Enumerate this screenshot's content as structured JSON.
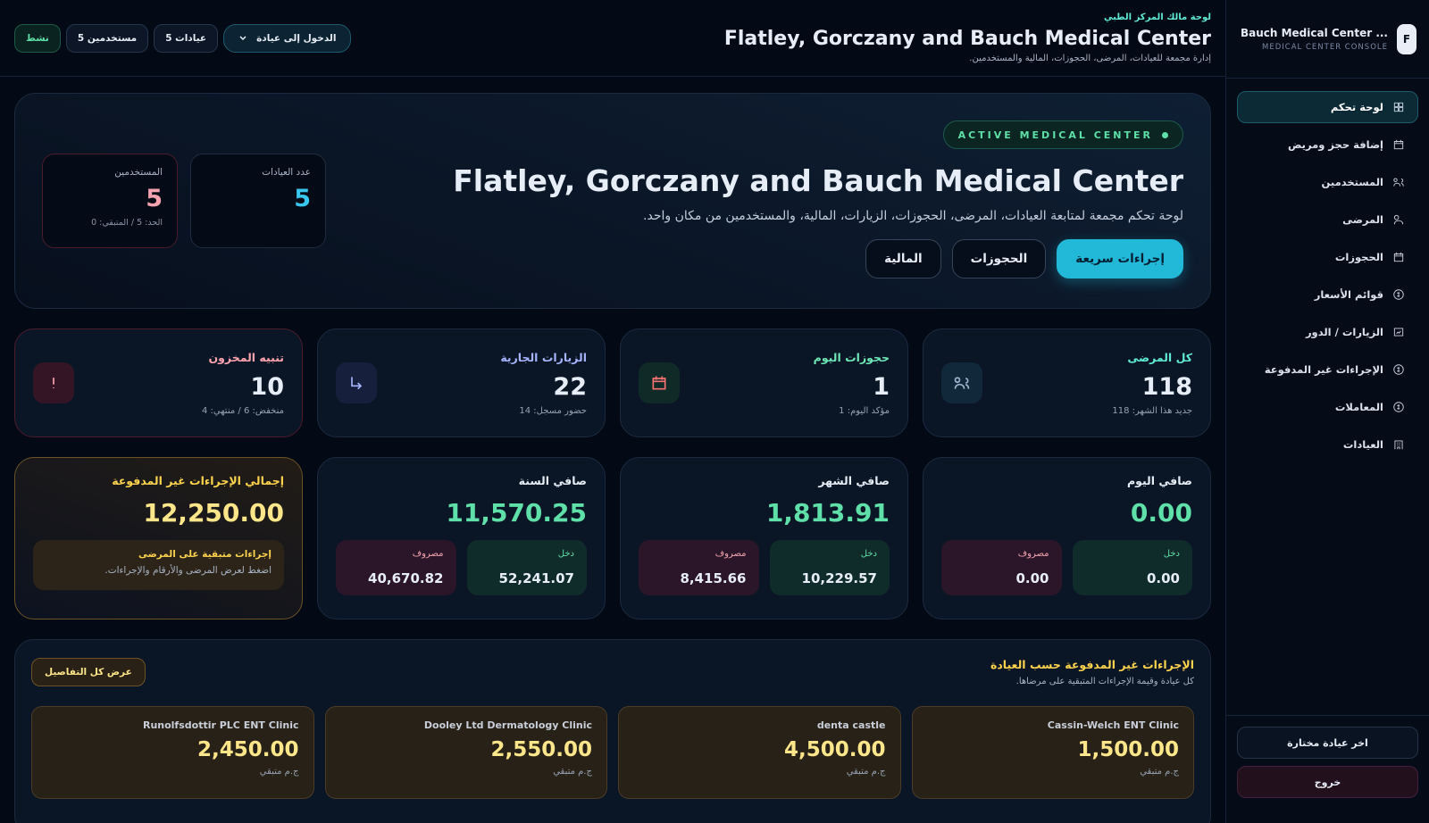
{
  "sidebar": {
    "avatar": "F",
    "brand_title": "Bauch Medical Center ...",
    "brand_subtitle": "MEDICAL CENTER CONSOLE",
    "nav": [
      "لوحة تحكم",
      "إضافة حجز ومريض",
      "المستخدمين",
      "المرضى",
      "الحجوزات",
      "قوائم الأسعار",
      "الزيارات / الدور",
      "الإجراءات غير المدفوعة",
      "المعاملات",
      "العيادات"
    ],
    "footer": [
      "اخر عيادة مختارة",
      "خروج"
    ]
  },
  "header": {
    "kicker": "لوحة مالك المركز الطبي",
    "title": "Flatley, Gorczany and Bauch Medical Center",
    "subtitle": "إدارة مجمعة للعيادات، المرضى، الحجوزات، المالية والمستخدمين.",
    "dropdown": "الدخول إلى عيادة",
    "chips": [
      "عيادات 5",
      "مستخدمين 5",
      "نشط"
    ]
  },
  "hero": {
    "badge": "ACTIVE MEDICAL CENTER",
    "title": "Flatley, Gorczany and Bauch Medical Center",
    "description": "لوحة تحكم مجمعة لمتابعة العيادات، المرضى، الحجوزات، الزيارات، المالية، والمستخدمين من مكان واحد.",
    "buttons": [
      "إجراءات سريعة",
      "الحجوزات",
      "المالية"
    ],
    "stats": [
      {
        "label": "عدد العيادات",
        "value": "5"
      },
      {
        "label": "المستخدمين",
        "value": "5",
        "note": "الحد: 5 / المتبقي: 0"
      }
    ]
  },
  "stat_cards": [
    {
      "title": "كل المرضى",
      "value": "118",
      "note": "جديد هذا الشهر: 118"
    },
    {
      "title": "حجوزات اليوم",
      "value": "1",
      "note": "مؤكد اليوم: 1"
    },
    {
      "title": "الزيارات الجارية",
      "value": "22",
      "note": "حضور مسجل: 14"
    },
    {
      "title": "تنبيه المخزون",
      "value": "10",
      "note": "منخفض: 6 / منتهي: 4"
    }
  ],
  "finance_cards": [
    {
      "title": "صافي اليوم",
      "value": "0.00",
      "income_label": "دخل",
      "income": "0.00",
      "expense_label": "مصروف",
      "expense": "0.00"
    },
    {
      "title": "صافي الشهر",
      "value": "1,813.91",
      "income_label": "دخل",
      "income": "10,229.57",
      "expense_label": "مصروف",
      "expense": "8,415.66"
    },
    {
      "title": "صافي السنة",
      "value": "11,570.25",
      "income_label": "دخل",
      "income": "52,241.07",
      "expense_label": "مصروف",
      "expense": "40,670.82"
    }
  ],
  "unpaid_total": {
    "title": "إجمالي الإجراءات غير المدفوعة",
    "value": "12,250.00",
    "box_title": "إجراءات متبقية على المرضى",
    "box_text": "اضغط لعرض المرضى والأرقام والإجراءات."
  },
  "clinics_section": {
    "title": "الإجراءات غير المدفوعة حسب العيادة",
    "subtitle": "كل عيادة وقيمة الإجراءات المتبقية على مرضاها.",
    "button": "عرض كل التفاصيل",
    "clinics": [
      {
        "name": "Cassin-Welch ENT Clinic",
        "amount": "1,500.00",
        "unit": "ج.م متبقي"
      },
      {
        "name": "denta castle",
        "amount": "4,500.00",
        "unit": "ج.م متبقي"
      },
      {
        "name": "Dooley Ltd Dermatology Clinic",
        "amount": "2,550.00",
        "unit": "ج.م متبقي"
      },
      {
        "name": "Runolfsdottir PLC ENT Clinic",
        "amount": "2,450.00",
        "unit": "ج.م متبقي"
      }
    ]
  }
}
